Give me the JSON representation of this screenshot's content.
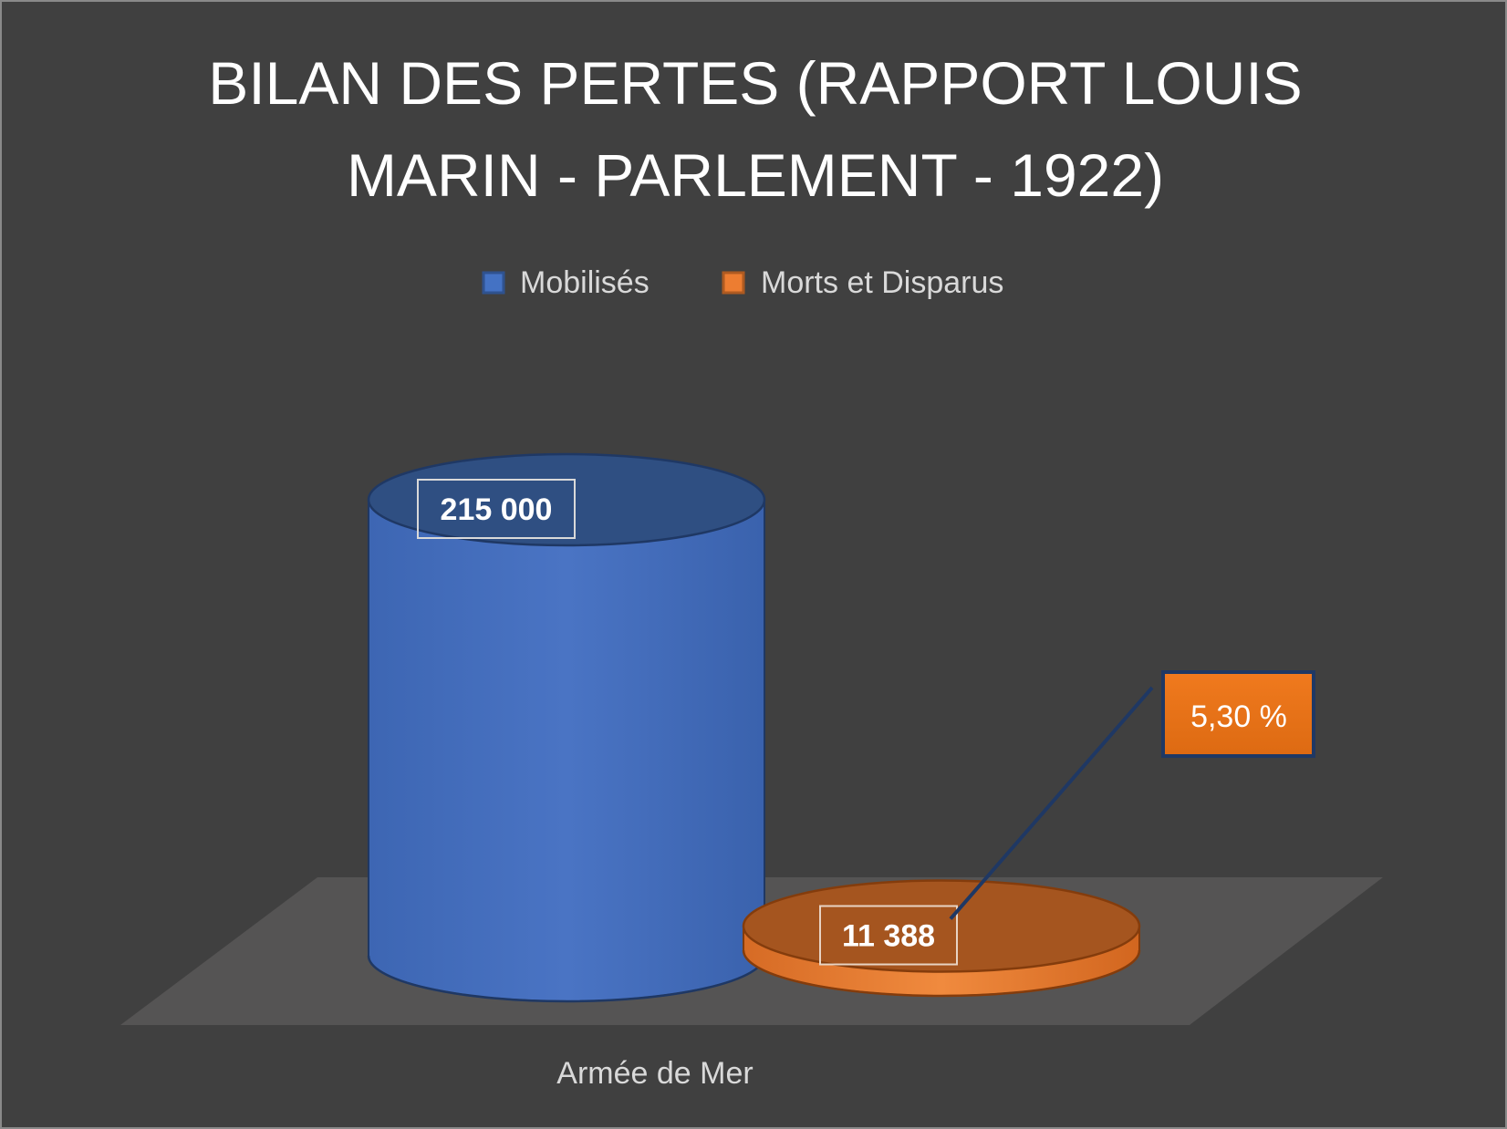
{
  "chart_data": {
    "type": "bar",
    "style": "3d-cylinder",
    "title_lines": [
      "BILAN DES PERTES (RAPPORT LOUIS",
      "MARIN - PARLEMENT - 1922)"
    ],
    "categories": [
      "Armée de Mer"
    ],
    "series": [
      {
        "name": "Mobilisés",
        "values": [
          215000
        ],
        "label": "215 000",
        "color": "#4472C4"
      },
      {
        "name": "Morts et Disparus",
        "values": [
          11388
        ],
        "label": "11 388",
        "color": "#ED7D31"
      }
    ],
    "annotation": {
      "text": "5,30 %",
      "series": "Morts et Disparus"
    },
    "legend_position": "top",
    "grid": false,
    "ylim": [
      0,
      215000
    ]
  },
  "colors": {
    "background": "#404040",
    "floor": "#555454",
    "text": "#FFFFFF",
    "muted_text": "#D9D9D9"
  }
}
